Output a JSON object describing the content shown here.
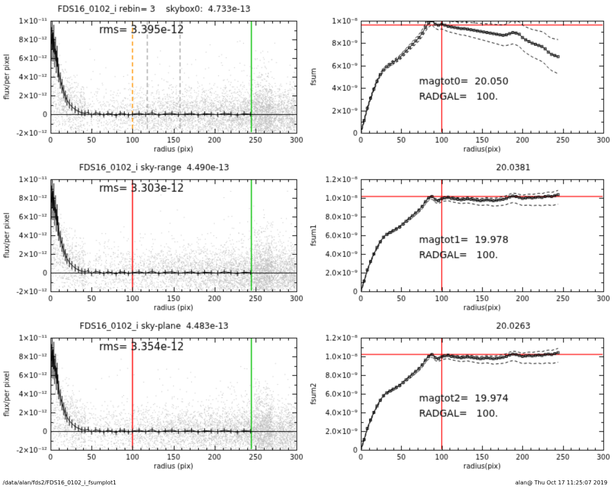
{
  "page": {
    "background": "#ffffff",
    "footer_left": "/data/alan/fds2/FDS16_0102_i_fsumplot1",
    "footer_right": "alan@  Thu Oct 17 11:25:07 2019"
  },
  "colors": {
    "scatter": "#b8b8b8",
    "profile": "#000000",
    "axis": "#000000",
    "red": "#ff0000",
    "green": "#00c000",
    "orange": "#ff9500",
    "gray_dashed": "#aaaaaa"
  },
  "shared": {
    "profile_y_scale": 1e-12,
    "profile_r": [
      1,
      2,
      3,
      4,
      5,
      6,
      7,
      8,
      9,
      10,
      12,
      14,
      16,
      18,
      20,
      23,
      26,
      30,
      34,
      38,
      42,
      46,
      50,
      55,
      60,
      65,
      70,
      75,
      80,
      85,
      90,
      95,
      100,
      108,
      116,
      124,
      132,
      140,
      148,
      156,
      164,
      172,
      180,
      188,
      196,
      204,
      212,
      220,
      228,
      236,
      244
    ],
    "profile_flux": [
      7.5,
      8.6,
      7.2,
      8.1,
      6.4,
      7.0,
      5.6,
      6.2,
      5.0,
      4.4,
      3.6,
      3.0,
      2.4,
      1.9,
      1.5,
      1.1,
      0.8,
      0.5,
      0.3,
      0.15,
      0.1,
      0.2,
      -0.1,
      0.15,
      0.05,
      -0.1,
      0.1,
      0.0,
      -0.15,
      0.1,
      0.05,
      -0.1,
      0.0,
      0.1,
      -0.05,
      0.15,
      -0.1,
      0.05,
      0.1,
      -0.05,
      0.0,
      0.1,
      -0.1,
      0.05,
      0.0,
      -0.05,
      0.1,
      0.0,
      -0.1,
      0.05,
      0.0
    ],
    "growth_y_scale": 1e-09,
    "growth_r": [
      0,
      4,
      8,
      12,
      16,
      20,
      24,
      28,
      32,
      36,
      40,
      44,
      48,
      52,
      56,
      60,
      64,
      68,
      72,
      76,
      80,
      84,
      88,
      92,
      96,
      100,
      104,
      108,
      112,
      116,
      120,
      124,
      128,
      132,
      136,
      140,
      144,
      148,
      152,
      156,
      160,
      164,
      168,
      172,
      176,
      180,
      184,
      188,
      192,
      196,
      200,
      204,
      208,
      212,
      216,
      220,
      224,
      228,
      232,
      236,
      240,
      244
    ]
  },
  "chart_data": [
    {
      "id": "profile-skybox0",
      "kind": "profile",
      "type": "scatter",
      "title": "FDS16_0102_i rebin= 3    skybox0:  4.733e-13",
      "rms_label": "rms= 3.395e-12",
      "xlabel": "radius (pix)",
      "ylabel": "flux/per pixel",
      "xlim": [
        0,
        300
      ],
      "ylim": [
        -2e-12,
        1e-11
      ],
      "xticks": [
        0,
        50,
        100,
        150,
        200,
        250,
        300
      ],
      "yticks": [
        {
          "v": -2e-12,
          "t": "-2×10⁻¹²"
        },
        {
          "v": 0,
          "t": "0"
        },
        {
          "v": 2e-12,
          "t": "2×10⁻¹²"
        },
        {
          "v": 4e-12,
          "t": "4×10⁻¹²"
        },
        {
          "v": 6e-12,
          "t": "6×10⁻¹²"
        },
        {
          "v": 8e-12,
          "t": "8×10⁻¹²"
        },
        {
          "v": 1e-11,
          "t": "1×10⁻¹¹"
        }
      ],
      "vlines": [
        {
          "x": 100,
          "color": "orange",
          "dashed": true
        },
        {
          "x": 118,
          "color": "gray_dashed",
          "dashed": true
        },
        {
          "x": 158,
          "color": "gray_dashed",
          "dashed": true
        },
        {
          "x": 245,
          "color": "green",
          "dashed": false
        }
      ],
      "hline_y": 0,
      "seed": 7
    },
    {
      "id": "growth-fsum0",
      "kind": "growth",
      "type": "line",
      "title": "",
      "xlabel": "radius(pix)",
      "ylabel": "fsum",
      "xlim": [
        0,
        300
      ],
      "ylim": [
        0,
        1e-08
      ],
      "xticks": [
        0,
        50,
        100,
        150,
        200,
        250,
        300
      ],
      "yticks": [
        {
          "v": 0,
          "t": "0"
        },
        {
          "v": 2e-09,
          "t": "2×10⁻⁹"
        },
        {
          "v": 4e-09,
          "t": "4×10⁻⁹"
        },
        {
          "v": 6e-09,
          "t": "6×10⁻⁹"
        },
        {
          "v": 8e-09,
          "t": "8×10⁻⁹"
        },
        {
          "v": 1e-08,
          "t": "1×10⁻⁸"
        }
      ],
      "hline": 9.65e-09,
      "vline": 100,
      "annotations": [
        "magtot0=  20.050",
        "RADGAL=   100."
      ],
      "values": [
        0,
        1.1,
        2.2,
        3.1,
        3.9,
        4.6,
        5.2,
        5.6,
        5.9,
        6.1,
        6.3,
        6.5,
        6.7,
        7.0,
        7.3,
        7.6,
        7.9,
        8.2,
        8.5,
        8.9,
        9.4,
        9.8,
        10.0,
        9.7,
        9.6,
        9.7,
        9.6,
        9.5,
        9.45,
        9.4,
        9.35,
        9.3,
        9.3,
        9.25,
        9.2,
        9.15,
        9.1,
        9.05,
        9.0,
        8.95,
        8.9,
        8.85,
        8.8,
        8.75,
        8.7,
        8.75,
        8.85,
        8.95,
        8.9,
        8.8,
        8.5,
        8.3,
        8.15,
        8.0,
        7.9,
        7.8,
        7.7,
        7.5,
        7.2,
        7.0,
        6.9,
        6.8
      ],
      "spread_max": 1.4,
      "spread_up_factor": 1.0
    },
    {
      "id": "profile-skyrange",
      "kind": "profile",
      "type": "scatter",
      "title": "FDS16_0102_i sky-range  4.490e-13",
      "rms_label": "rms= 3.303e-12",
      "xlabel": "radius (pix)",
      "ylabel": "flux/per pixel",
      "xlim": [
        0,
        300
      ],
      "ylim": [
        -2e-12,
        1e-11
      ],
      "xticks": [
        0,
        50,
        100,
        150,
        200,
        250,
        300
      ],
      "yticks": [
        {
          "v": -2e-12,
          "t": "-2×10⁻¹²"
        },
        {
          "v": 0,
          "t": "0"
        },
        {
          "v": 2e-12,
          "t": "2×10⁻¹²"
        },
        {
          "v": 4e-12,
          "t": "4×10⁻¹²"
        },
        {
          "v": 6e-12,
          "t": "6×10⁻¹²"
        },
        {
          "v": 8e-12,
          "t": "8×10⁻¹²"
        },
        {
          "v": 1e-11,
          "t": "1×10⁻¹¹"
        }
      ],
      "vlines": [
        {
          "x": 100,
          "color": "red",
          "dashed": false
        },
        {
          "x": 245,
          "color": "green",
          "dashed": false
        }
      ],
      "hline_y": 0,
      "seed": 13
    },
    {
      "id": "growth-fsum1",
      "kind": "growth",
      "type": "line",
      "title": "20.0381",
      "xlabel": "radius(pix)",
      "ylabel": "fsum1",
      "xlim": [
        0,
        300
      ],
      "ylim": [
        0,
        1.2e-08
      ],
      "xticks": [
        0,
        50,
        100,
        150,
        200,
        250,
        300
      ],
      "yticks": [
        {
          "v": 0,
          "t": "0"
        },
        {
          "v": 2e-09,
          "t": "2.0×10⁻⁹"
        },
        {
          "v": 4e-09,
          "t": "4.0×10⁻⁹"
        },
        {
          "v": 6e-09,
          "t": "6.0×10⁻⁹"
        },
        {
          "v": 8e-09,
          "t": "8.0×10⁻⁹"
        },
        {
          "v": 1e-08,
          "t": "1.0×10⁻⁸"
        },
        {
          "v": 1.2e-08,
          "t": "1.2×10⁻⁸"
        }
      ],
      "hline": 1.02e-08,
      "vline": 100,
      "annotations": [
        "magtot1=  19.978",
        "RADGAL=   100."
      ],
      "values": [
        0,
        1.1,
        2.3,
        3.2,
        4.0,
        4.7,
        5.3,
        5.8,
        6.1,
        6.3,
        6.5,
        6.7,
        6.9,
        7.2,
        7.5,
        7.8,
        8.1,
        8.4,
        8.7,
        9.1,
        9.6,
        10.0,
        10.15,
        9.8,
        9.7,
        9.9,
        10.0,
        10.05,
        9.95,
        9.9,
        9.85,
        9.8,
        9.85,
        9.9,
        9.85,
        9.8,
        9.75,
        9.7,
        9.75,
        9.8,
        9.75,
        9.7,
        9.75,
        9.8,
        9.85,
        9.95,
        10.1,
        10.2,
        10.15,
        10.05,
        9.95,
        10.0,
        10.05,
        10.0,
        10.05,
        10.1,
        10.05,
        10.15,
        10.2,
        10.15,
        10.25,
        10.35
      ],
      "spread_max": 0.9,
      "spread_up_factor": 0.45
    },
    {
      "id": "profile-skyplane",
      "kind": "profile",
      "type": "scatter",
      "title": "FDS16_0102_i sky-plane  4.483e-13",
      "rms_label": "rms= 3.354e-12",
      "xlabel": "radius (pix)",
      "ylabel": "flux/per pixel",
      "xlim": [
        0,
        300
      ],
      "ylim": [
        -2e-12,
        1e-11
      ],
      "xticks": [
        0,
        50,
        100,
        150,
        200,
        250,
        300
      ],
      "yticks": [
        {
          "v": -2e-12,
          "t": "-2×10⁻¹²"
        },
        {
          "v": 0,
          "t": "0"
        },
        {
          "v": 2e-12,
          "t": "2×10⁻¹²"
        },
        {
          "v": 4e-12,
          "t": "4×10⁻¹²"
        },
        {
          "v": 6e-12,
          "t": "6×10⁻¹²"
        },
        {
          "v": 8e-12,
          "t": "8×10⁻¹²"
        },
        {
          "v": 1e-11,
          "t": "1×10⁻¹¹"
        }
      ],
      "vlines": [
        {
          "x": 100,
          "color": "red",
          "dashed": false
        },
        {
          "x": 245,
          "color": "green",
          "dashed": false
        }
      ],
      "hline_y": 0,
      "seed": 29
    },
    {
      "id": "growth-fsum2",
      "kind": "growth",
      "type": "line",
      "title": "20.0263",
      "xlabel": "radius(pix)",
      "ylabel": "fsum2",
      "xlim": [
        0,
        300
      ],
      "ylim": [
        0,
        1.2e-08
      ],
      "xticks": [
        0,
        50,
        100,
        150,
        200,
        250,
        300
      ],
      "yticks": [
        {
          "v": 0,
          "t": "0"
        },
        {
          "v": 2e-09,
          "t": "2.0×10⁻⁹"
        },
        {
          "v": 4e-09,
          "t": "4.0×10⁻⁹"
        },
        {
          "v": 6e-09,
          "t": "6.0×10⁻⁹"
        },
        {
          "v": 8e-09,
          "t": "8.0×10⁻⁹"
        },
        {
          "v": 1e-08,
          "t": "1.0×10⁻⁸"
        },
        {
          "v": 1.2e-08,
          "t": "1.2×10⁻⁸"
        }
      ],
      "hline": 1.025e-08,
      "vline": 100,
      "annotations": [
        "magtot2=  19.974",
        "RADGAL=   100."
      ],
      "values": [
        0,
        1.1,
        2.3,
        3.2,
        4.0,
        4.7,
        5.3,
        5.8,
        6.1,
        6.3,
        6.5,
        6.7,
        6.9,
        7.2,
        7.5,
        7.8,
        8.1,
        8.4,
        8.7,
        9.1,
        9.6,
        10.0,
        10.2,
        9.85,
        9.75,
        9.95,
        10.05,
        10.1,
        10.0,
        9.95,
        9.9,
        9.85,
        9.9,
        9.95,
        9.9,
        9.85,
        9.8,
        9.75,
        9.8,
        9.85,
        9.8,
        9.75,
        9.8,
        9.85,
        9.9,
        10.0,
        10.15,
        10.25,
        10.2,
        10.1,
        10.0,
        10.05,
        10.1,
        10.05,
        10.1,
        10.15,
        10.1,
        10.2,
        10.25,
        10.2,
        10.3,
        10.4
      ],
      "spread_max": 0.9,
      "spread_up_factor": 0.45
    }
  ]
}
